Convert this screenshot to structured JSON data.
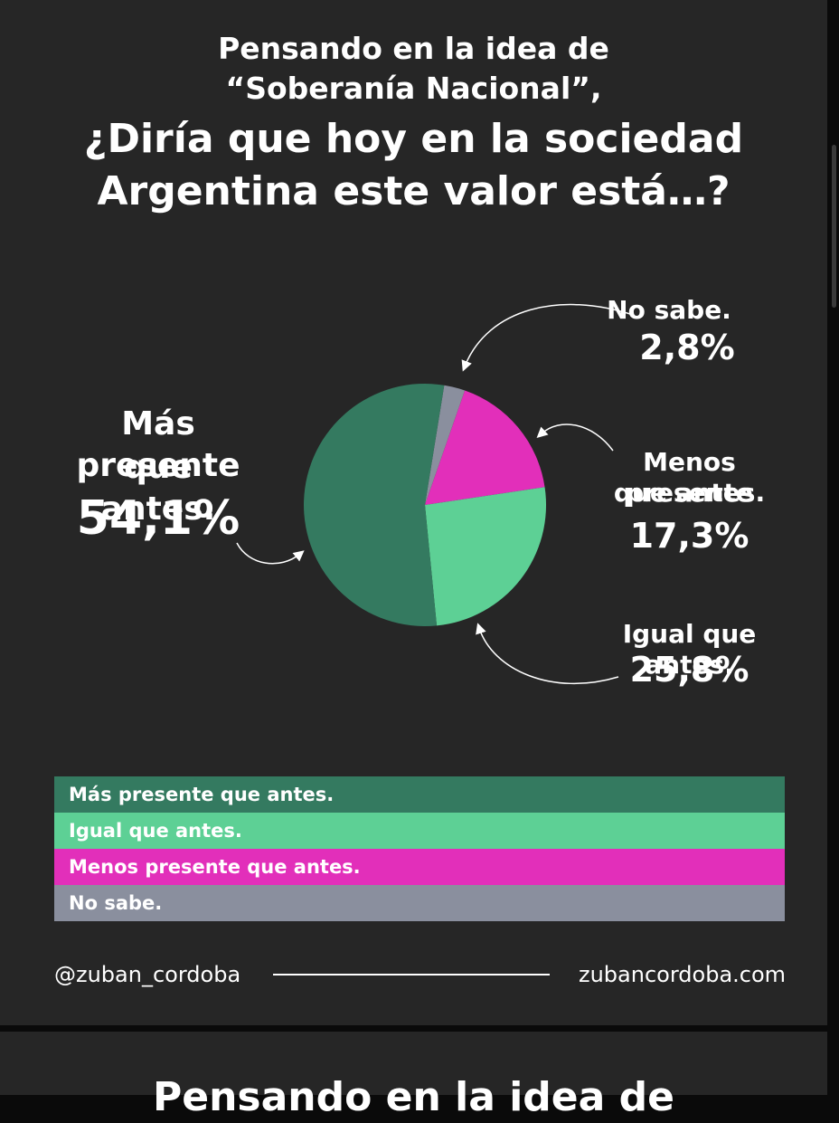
{
  "title": {
    "line1": "Pensando en la idea de",
    "line2": "“Soberanía Nacional”,",
    "line3": "¿Diría que hoy en la sociedad",
    "line4": "Argentina este valor está…?"
  },
  "chart_data": {
    "type": "pie",
    "slices": [
      {
        "label": "Más presente que antes.",
        "value": 54.1,
        "display": "54,1%",
        "color": "#347a60"
      },
      {
        "label": "Igual que antes.",
        "value": 25.8,
        "display": "25,8%",
        "color": "#5dd095"
      },
      {
        "label": "Menos presente que antes.",
        "value": 17.3,
        "display": "17,3%",
        "color": "#e22fba"
      },
      {
        "label": "No sabe.",
        "value": 2.8,
        "display": "2,8%",
        "color": "#8a8f9e"
      }
    ]
  },
  "callouts": {
    "mas": {
      "line1": "Más presente",
      "line2": "que antes.",
      "value": "54,1%"
    },
    "igual": {
      "line1": "Igual que antes.",
      "value": "25,8%"
    },
    "menos": {
      "line1": "Menos presente",
      "line2": "que antes.",
      "value": "17,3%"
    },
    "nosabe": {
      "line1": "No sabe.",
      "value": "2,8%"
    }
  },
  "legend": [
    {
      "label": "Más presente que antes.",
      "color": "#347a60"
    },
    {
      "label": "Igual que antes.",
      "color": "#5dd095"
    },
    {
      "label": "Menos presente que antes.",
      "color": "#e22fba"
    },
    {
      "label": "No sabe.",
      "color": "#8a8f9e"
    }
  ],
  "footer": {
    "handle": "@zuban_cordoba",
    "site": "zubancordoba.com"
  },
  "next_card": {
    "peek_text": "Pensando en la idea de"
  }
}
